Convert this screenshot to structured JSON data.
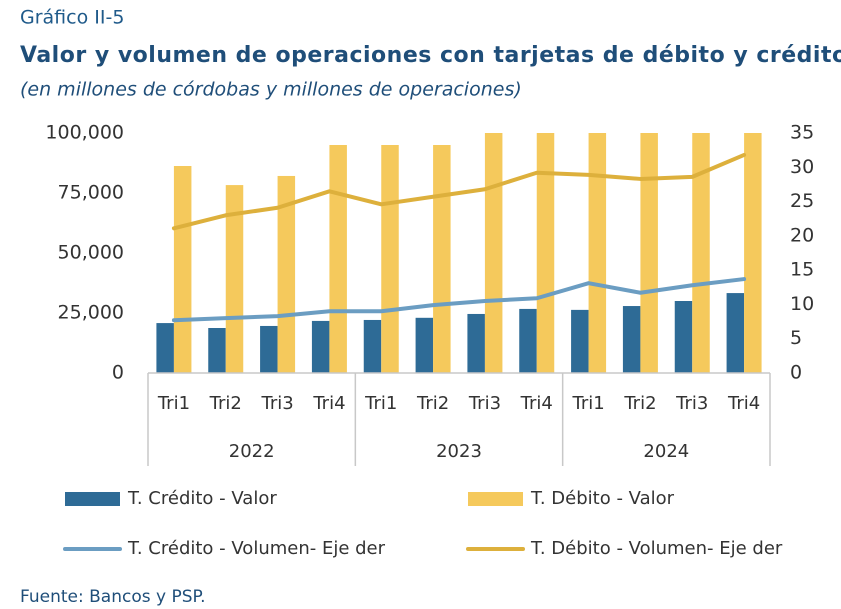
{
  "chart_data": {
    "type": "bar",
    "label": "Gráfico II-5",
    "title": "Valor y volumen de operaciones con tarjetas de débito y crédito",
    "subtitle": "(en millones de córdobas y millones de operaciones)",
    "source": "Fuente: Bancos y PSP.",
    "categories": [
      "Tri1",
      "Tri2",
      "Tri3",
      "Tri4",
      "Tri1",
      "Tri2",
      "Tri3",
      "Tri4",
      "Tri1",
      "Tri2",
      "Tri3",
      "Tri4"
    ],
    "groups": [
      "2022",
      "2023",
      "2024"
    ],
    "ylim": [
      0,
      100000
    ],
    "yticks": [
      0,
      {
        "value": 25000,
        "label": "25,000"
      },
      {
        "value": 50000,
        "label": "50,000"
      },
      {
        "value": 75000,
        "label": "75,000"
      },
      {
        "value": 100000,
        "label": "100,000"
      }
    ],
    "y2lim": [
      0,
      35
    ],
    "y2ticks": [
      0,
      5,
      10,
      15,
      20,
      25,
      30,
      35
    ],
    "series": [
      {
        "name": "T. Crédito - Valor",
        "type": "bar",
        "color": "#2e6b96",
        "values": [
          20800,
          18750,
          19600,
          21700,
          22100,
          23000,
          24600,
          26700,
          26300,
          27900,
          30000,
          33300
        ]
      },
      {
        "name": "T. Débito - Valor",
        "type": "bar",
        "color": "#f5c95c",
        "values": [
          86250,
          78300,
          82100,
          95000,
          95000,
          95000,
          100000,
          100000,
          100000,
          100000,
          100000,
          100000
        ]
      },
      {
        "name": "T. Crédito - Volumen- Eje der",
        "type": "line",
        "axis": "y2",
        "color": "#6b9dc2",
        "values": [
          7.7,
          8.0,
          8.3,
          9.0,
          9.0,
          9.9,
          10.5,
          10.9,
          13.1,
          11.7,
          12.8,
          13.7
        ]
      },
      {
        "name": "T. Débito - Volumen- Eje der",
        "type": "line",
        "axis": "y2",
        "color": "#ddb03c",
        "values": [
          21.1,
          23.0,
          24.1,
          26.5,
          24.6,
          25.7,
          26.8,
          29.2,
          28.9,
          28.3,
          28.6,
          31.8
        ]
      }
    ]
  }
}
